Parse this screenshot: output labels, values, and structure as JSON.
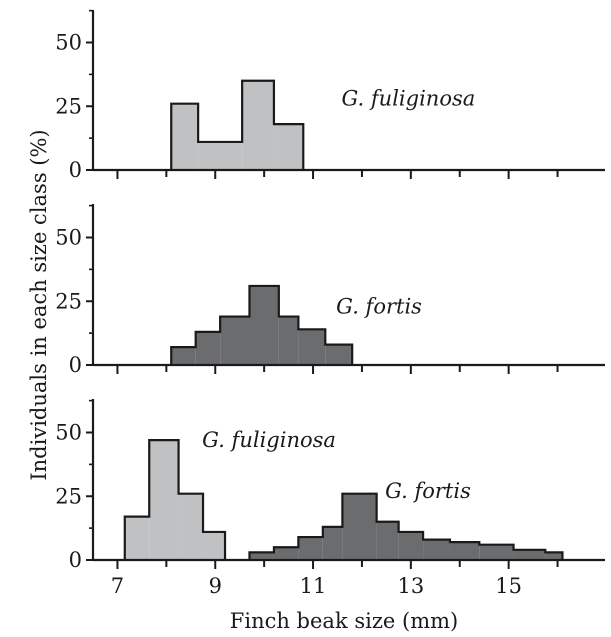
{
  "chart_data": {
    "type": "bar",
    "ylabel": "Individuals in each size class (%)",
    "xlabel": "Finch beak size (mm)",
    "xlim": [
      6.5,
      16.5
    ],
    "x_ticks": [
      7,
      9,
      11,
      13,
      15
    ],
    "ylim": [
      0,
      65
    ],
    "y_ticks": [
      0,
      25,
      50
    ],
    "colors": {
      "light": "#c0c1c3",
      "dark": "#6b6c6e",
      "stroke": "#1a1a1a"
    },
    "panels": [
      {
        "series": [
          {
            "name": "G. fuliginosa",
            "color": "light",
            "edges": [
              8.1,
              8.65,
              9.55,
              10.2,
              10.8
            ],
            "values": [
              26,
              11,
              35,
              18
            ]
          }
        ],
        "labels": [
          {
            "text": "G. fuliginosa",
            "x": 12.95,
            "y": 28
          }
        ]
      },
      {
        "series": [
          {
            "name": "G. fortis",
            "color": "dark",
            "edges": [
              8.1,
              8.6,
              9.1,
              9.7,
              10.3,
              10.7,
              11.25,
              11.8
            ],
            "values": [
              7,
              13,
              19,
              31,
              19,
              14,
              8
            ]
          }
        ],
        "labels": [
          {
            "text": "G. fortis",
            "x": 12.35,
            "y": 23
          }
        ]
      },
      {
        "series": [
          {
            "name": "G. fuliginosa",
            "color": "light",
            "edges": [
              7.15,
              7.65,
              8.25,
              8.75,
              9.2
            ],
            "values": [
              17,
              47,
              26,
              11
            ]
          },
          {
            "name": "G. fortis",
            "color": "dark",
            "edges": [
              9.7,
              10.2,
              10.7,
              11.2,
              11.6,
              12.3,
              12.75,
              13.25,
              13.8,
              14.4,
              15.1,
              15.75,
              16.1
            ],
            "values": [
              3,
              5,
              9,
              13,
              26,
              15,
              11,
              8,
              7,
              6,
              4,
              3
            ]
          }
        ],
        "labels": [
          {
            "text": "G. fuliginosa",
            "x": 10.1,
            "y": 47
          },
          {
            "text": "G. fortis",
            "x": 13.35,
            "y": 27
          }
        ]
      }
    ]
  }
}
